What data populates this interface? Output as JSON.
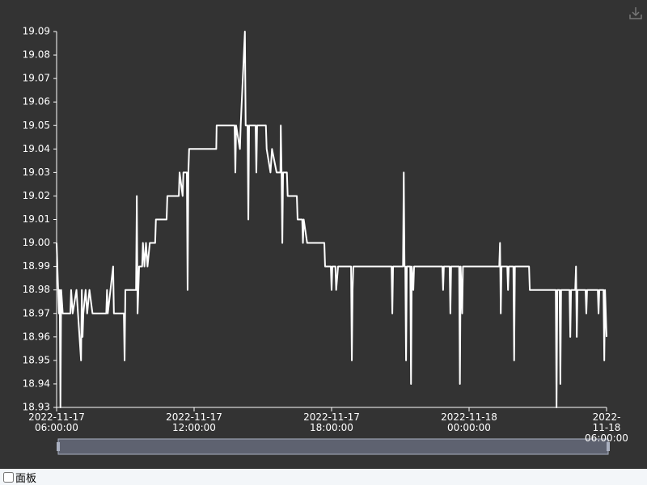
{
  "chart_data": {
    "type": "line",
    "color": "#ffffff",
    "xlim": [
      "2022-11-17 06:00:00",
      "2022-11-18 06:00:00"
    ],
    "xticks": [
      {
        "value": "2022-11-17 06:00:00",
        "label": "2022-11-17\n06:00:00"
      },
      {
        "value": "2022-11-17 12:00:00",
        "label": "2022-11-17\n12:00:00"
      },
      {
        "value": "2022-11-17 18:00:00",
        "label": "2022-11-17\n18:00:00"
      },
      {
        "value": "2022-11-18 00:00:00",
        "label": "2022-11-18\n00:00:00"
      },
      {
        "value": "2022-11-18 06:00:00",
        "label": "2022-11-18\n06:00:00"
      }
    ],
    "ylim": [
      18.93,
      19.09
    ],
    "yticks": [
      18.93,
      18.94,
      18.95,
      18.96,
      18.97,
      18.98,
      18.99,
      {
        "value": 19,
        "label": "19.00"
      },
      19.01,
      19.02,
      19.03,
      19.04,
      19.05,
      19.06,
      19.07,
      19.08,
      19.09
    ],
    "x": [
      "2022-11-17 06:00:00",
      "2022-11-17 06:04:00",
      "2022-11-17 06:06:00",
      "2022-11-17 06:08:00",
      "2022-11-17 06:10:00",
      "2022-11-17 06:12:00",
      "2022-11-17 06:16:00",
      "2022-11-17 06:36:00",
      "2022-11-17 06:38:00",
      "2022-11-17 06:42:00",
      "2022-11-17 06:52:00",
      "2022-11-17 06:56:00",
      "2022-11-17 07:04:00",
      "2022-11-17 07:06:00",
      "2022-11-17 07:08:00",
      "2022-11-17 07:10:00",
      "2022-11-17 07:16:00",
      "2022-11-17 07:20:00",
      "2022-11-17 07:26:00",
      "2022-11-17 07:34:00",
      "2022-11-17 08:10:00",
      "2022-11-17 08:12:00",
      "2022-11-17 08:14:00",
      "2022-11-17 08:28:00",
      "2022-11-17 08:30:00",
      "2022-11-17 08:56:00",
      "2022-11-17 08:58:00",
      "2022-11-17 09:00:00",
      "2022-11-17 09:28:00",
      "2022-11-17 09:30:00",
      "2022-11-17 09:32:00",
      "2022-11-17 09:36:00",
      "2022-11-17 09:44:00",
      "2022-11-17 09:46:00",
      "2022-11-17 09:50:00",
      "2022-11-17 09:54:00",
      "2022-11-17 09:58:00",
      "2022-11-17 10:04:00",
      "2022-11-17 10:18:00",
      "2022-11-17 10:20:00",
      "2022-11-17 10:48:00",
      "2022-11-17 10:50:00",
      "2022-11-17 11:20:00",
      "2022-11-17 11:22:00",
      "2022-11-17 11:30:00",
      "2022-11-17 11:32:00",
      "2022-11-17 11:41:00",
      "2022-11-17 11:43:00",
      "2022-11-17 11:45:00",
      "2022-11-17 11:47:00",
      "2022-11-17 12:58:00",
      "2022-11-17 12:59:00",
      "2022-11-17 13:46:00",
      "2022-11-17 13:48:00",
      "2022-11-17 13:50:00",
      "2022-11-17 14:00:00",
      "2022-11-17 14:02:00",
      "2022-11-17 14:13:00",
      "2022-11-17 14:15:00",
      "2022-11-17 14:20:00",
      "2022-11-17 14:22:00",
      "2022-11-17 14:24:00",
      "2022-11-17 14:41:00",
      "2022-11-17 14:43:00",
      "2022-11-17 14:45:00",
      "2022-11-17 15:08:00",
      "2022-11-17 15:10:00",
      "2022-11-17 15:20:00",
      "2022-11-17 15:24:00",
      "2022-11-17 15:36:00",
      "2022-11-17 15:46:00",
      "2022-11-17 15:47:00",
      "2022-11-17 15:49:00",
      "2022-11-17 15:51:00",
      "2022-11-17 15:53:00",
      "2022-11-17 16:03:00",
      "2022-11-17 16:05:00",
      "2022-11-17 16:29:00",
      "2022-11-17 16:31:00",
      "2022-11-17 16:43:00",
      "2022-11-17 16:45:00",
      "2022-11-17 16:47:00",
      "2022-11-17 16:56:00",
      "2022-11-17 17:41:00",
      "2022-11-17 17:43:00",
      "2022-11-17 17:58:00",
      "2022-11-17 18:00:00",
      "2022-11-17 18:02:00",
      "2022-11-17 18:10:00",
      "2022-11-17 18:12:00",
      "2022-11-17 18:17:00",
      "2022-11-17 18:51:00",
      "2022-11-17 18:53:00",
      "2022-11-17 18:55:00",
      "2022-11-17 18:57:00",
      "2022-11-17 20:37:00",
      "2022-11-17 20:39:00",
      "2022-11-17 20:41:00",
      "2022-11-17 21:07:00",
      "2022-11-17 21:09:00",
      "2022-11-17 21:11:00",
      "2022-11-17 21:13:00",
      "2022-11-17 21:15:00",
      "2022-11-17 21:17:00",
      "2022-11-17 21:26:00",
      "2022-11-17 21:28:00",
      "2022-11-17 21:30:00",
      "2022-11-17 21:34:00",
      "2022-11-17 21:36:00",
      "2022-11-17 22:50:00",
      "2022-11-17 22:52:00",
      "2022-11-17 22:54:00",
      "2022-11-17 23:09:00",
      "2022-11-17 23:11:00",
      "2022-11-17 23:13:00",
      "2022-11-17 23:34:00",
      "2022-11-17 23:36:00",
      "2022-11-17 23:38:00",
      "2022-11-17 23:42:00",
      "2022-11-17 23:44:00",
      "2022-11-18 01:19:00",
      "2022-11-18 01:21:00",
      "2022-11-18 01:23:00",
      "2022-11-18 01:25:00",
      "2022-11-18 01:40:00",
      "2022-11-18 01:42:00",
      "2022-11-18 01:44:00",
      "2022-11-18 01:56:00",
      "2022-11-18 01:58:00",
      "2022-11-18 02:00:00",
      "2022-11-18 02:37:00",
      "2022-11-18 02:39:00",
      "2022-11-18 03:47:00",
      "2022-11-18 03:49:00",
      "2022-11-18 03:51:00",
      "2022-11-18 03:57:00",
      "2022-11-18 03:59:00",
      "2022-11-18 04:01:00",
      "2022-11-18 04:23:00",
      "2022-11-18 04:25:00",
      "2022-11-18 04:27:00",
      "2022-11-18 04:38:00",
      "2022-11-18 04:40:00",
      "2022-11-18 04:42:00",
      "2022-11-18 04:44:00",
      "2022-11-18 05:05:00",
      "2022-11-18 05:07:00",
      "2022-11-18 05:09:00",
      "2022-11-18 05:37:00",
      "2022-11-18 05:39:00",
      "2022-11-18 05:41:00",
      "2022-11-18 05:52:00",
      "2022-11-18 05:54:00",
      "2022-11-18 05:56:00",
      "2022-11-18 06:00:00"
    ],
    "values": [
      19.0,
      18.98,
      18.97,
      18.98,
      18.93,
      18.98,
      18.97,
      18.97,
      18.98,
      18.97,
      18.98,
      18.97,
      18.95,
      18.98,
      18.96,
      18.97,
      18.98,
      18.97,
      18.98,
      18.97,
      18.97,
      18.98,
      18.97,
      18.99,
      18.97,
      18.97,
      18.95,
      18.98,
      18.98,
      19.02,
      18.97,
      18.99,
      18.99,
      19.0,
      18.99,
      19.0,
      18.99,
      19.0,
      19.0,
      19.01,
      19.01,
      19.02,
      19.02,
      19.03,
      19.02,
      19.03,
      19.03,
      18.98,
      19.03,
      19.04,
      19.04,
      19.05,
      19.05,
      19.03,
      19.05,
      19.04,
      19.05,
      19.09,
      19.05,
      19.05,
      19.01,
      19.05,
      19.05,
      19.03,
      19.05,
      19.05,
      19.04,
      19.03,
      19.04,
      19.03,
      19.03,
      19.05,
      19.03,
      19.0,
      19.03,
      19.03,
      19.02,
      19.02,
      19.01,
      19.01,
      19.0,
      19.01,
      19.0,
      19.0,
      18.99,
      18.99,
      18.98,
      18.99,
      18.99,
      18.98,
      18.99,
      18.99,
      18.95,
      18.98,
      18.99,
      18.99,
      18.97,
      18.99,
      18.99,
      19.03,
      18.99,
      18.99,
      18.95,
      18.99,
      18.99,
      18.94,
      18.99,
      18.98,
      18.99,
      18.99,
      18.98,
      18.99,
      18.99,
      18.97,
      18.99,
      18.99,
      18.94,
      18.99,
      18.97,
      18.99,
      18.99,
      19.0,
      18.97,
      18.99,
      18.99,
      18.98,
      18.99,
      18.99,
      18.95,
      18.99,
      18.99,
      18.98,
      18.98,
      18.93,
      18.98,
      18.98,
      18.94,
      18.98,
      18.98,
      18.96,
      18.98,
      18.98,
      18.99,
      18.96,
      18.98,
      18.98,
      18.97,
      18.98,
      18.98,
      18.97,
      18.98,
      18.98,
      18.95,
      18.98,
      18.96
    ]
  },
  "panel_toggle": {
    "label": "面板"
  }
}
